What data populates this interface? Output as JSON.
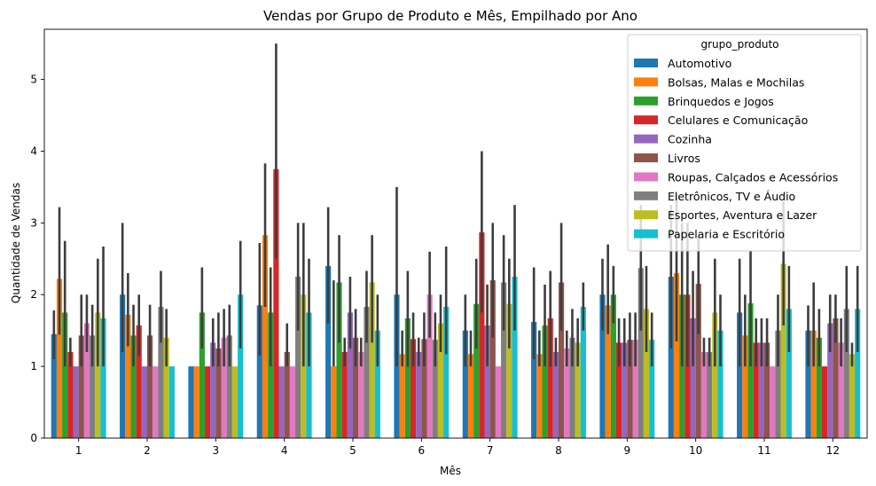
{
  "chart_data": {
    "type": "bar",
    "title": "Vendas por Grupo de Produto e Mês, Empilhado por Ano",
    "xlabel": "Mês",
    "ylabel": "Quantidade de Vendas",
    "categories": [
      "1",
      "2",
      "3",
      "4",
      "5",
      "6",
      "7",
      "8",
      "9",
      "10",
      "11",
      "12"
    ],
    "y_ticks": [
      "0",
      "1",
      "2",
      "3",
      "4",
      "5"
    ],
    "ylim": [
      0,
      5.7
    ],
    "grid": false,
    "legend_title": "grupo_produto",
    "legend_placement": "top-right",
    "series": [
      {
        "name": "Automotivo",
        "color": "#1f77b4",
        "values": [
          1.45,
          2.0,
          1.0,
          1.85,
          2.4,
          2.0,
          1.5,
          1.62,
          2.0,
          2.25,
          1.75,
          1.5
        ],
        "ci_low": [
          1.1,
          1.2,
          1.0,
          1.15,
          1.6,
          1.0,
          1.0,
          1.1,
          1.5,
          1.25,
          1.0,
          1.0
        ],
        "ci_high": [
          1.78,
          3.0,
          1.0,
          2.72,
          3.22,
          3.5,
          2.0,
          2.38,
          2.5,
          3.25,
          2.5,
          1.85
        ]
      },
      {
        "name": "Bolsas, Malas e Mochilas",
        "color": "#ff7f0e",
        "values": [
          2.22,
          1.72,
          1.0,
          2.83,
          1.0,
          1.17,
          1.17,
          1.17,
          1.85,
          2.3,
          1.43,
          1.5
        ],
        "ci_low": [
          1.44,
          1.28,
          1.0,
          1.83,
          1.0,
          1.0,
          1.0,
          1.0,
          1.45,
          1.35,
          1.0,
          1.0
        ],
        "ci_high": [
          3.22,
          2.3,
          1.0,
          3.83,
          2.2,
          1.5,
          1.5,
          1.5,
          2.7,
          3.4,
          2.0,
          2.17
        ]
      },
      {
        "name": "Brinquedos e Jogos",
        "color": "#2ca02c",
        "values": [
          1.75,
          1.43,
          1.75,
          1.75,
          2.17,
          1.67,
          1.87,
          1.57,
          2.0,
          2.0,
          1.88,
          1.4
        ],
        "ci_low": [
          1.0,
          1.0,
          1.25,
          1.0,
          1.33,
          1.0,
          1.25,
          1.0,
          1.6,
          1.0,
          1.0,
          1.0
        ],
        "ci_high": [
          2.75,
          1.86,
          2.38,
          2.38,
          2.83,
          2.33,
          2.5,
          2.14,
          2.4,
          3.0,
          2.62,
          1.8
        ]
      },
      {
        "name": "Celulares e Comunicação",
        "color": "#d62728",
        "values": [
          1.2,
          1.57,
          1.0,
          3.75,
          1.2,
          1.38,
          2.87,
          1.67,
          1.33,
          2.0,
          1.33,
          1.0
        ],
        "ci_low": [
          1.0,
          1.14,
          1.0,
          2.5,
          1.0,
          1.0,
          1.75,
          1.0,
          1.0,
          1.0,
          1.0,
          1.0
        ],
        "ci_high": [
          1.4,
          2.0,
          1.0,
          5.5,
          1.4,
          1.75,
          4.0,
          2.33,
          1.67,
          3.0,
          1.67,
          1.0
        ]
      },
      {
        "name": "Cozinha",
        "color": "#9467bd",
        "values": [
          1.0,
          1.0,
          1.33,
          1.0,
          1.75,
          1.2,
          1.57,
          1.2,
          1.33,
          1.67,
          1.33,
          1.6
        ],
        "ci_low": [
          1.0,
          1.0,
          1.0,
          1.0,
          1.25,
          1.0,
          1.0,
          1.0,
          1.0,
          1.0,
          1.0,
          1.2
        ],
        "ci_high": [
          1.0,
          1.0,
          1.67,
          1.0,
          2.25,
          1.4,
          2.14,
          1.4,
          1.67,
          2.33,
          1.67,
          2.0
        ]
      },
      {
        "name": "Livros",
        "color": "#8c564b",
        "values": [
          1.43,
          1.43,
          1.25,
          1.2,
          1.4,
          1.38,
          2.2,
          2.17,
          1.37,
          2.15,
          1.33,
          1.67
        ],
        "ci_low": [
          1.0,
          1.0,
          1.0,
          1.0,
          1.0,
          1.0,
          1.4,
          1.5,
          1.0,
          1.45,
          1.0,
          1.33
        ],
        "ci_high": [
          2.0,
          1.86,
          1.75,
          1.6,
          1.8,
          1.75,
          3.0,
          3.0,
          1.75,
          2.85,
          1.67,
          2.0
        ]
      },
      {
        "name": "Roupas, Calçados e Acessórios",
        "color": "#e377c2",
        "values": [
          1.6,
          1.0,
          1.4,
          1.0,
          1.2,
          2.0,
          1.0,
          1.25,
          1.37,
          1.2,
          1.0,
          1.33
        ],
        "ci_low": [
          1.2,
          1.0,
          1.0,
          1.0,
          1.0,
          1.4,
          1.0,
          1.0,
          1.0,
          1.0,
          1.0,
          1.0
        ],
        "ci_high": [
          2.0,
          1.0,
          1.8,
          1.0,
          1.4,
          2.6,
          1.0,
          1.5,
          1.75,
          1.4,
          1.0,
          1.67
        ]
      },
      {
        "name": "Eletrônicos, TV e Áudio",
        "color": "#7f7f7f",
        "values": [
          1.43,
          1.83,
          1.43,
          2.25,
          1.83,
          1.37,
          2.17,
          1.4,
          2.37,
          1.2,
          1.5,
          1.8
        ],
        "ci_low": [
          1.0,
          1.33,
          1.0,
          1.5,
          1.33,
          1.0,
          1.5,
          1.0,
          1.5,
          1.0,
          1.0,
          1.2
        ],
        "ci_high": [
          1.86,
          2.33,
          1.86,
          3.0,
          2.33,
          1.75,
          2.83,
          1.8,
          3.25,
          1.4,
          2.0,
          2.4
        ]
      },
      {
        "name": "Esportes, Aventura e Lazer",
        "color": "#bcbd22",
        "values": [
          1.75,
          1.4,
          1.0,
          2.0,
          2.17,
          1.6,
          1.87,
          1.33,
          1.8,
          1.75,
          2.43,
          1.17
        ],
        "ci_low": [
          1.0,
          1.0,
          1.0,
          1.0,
          1.33,
          1.2,
          1.25,
          1.0,
          1.2,
          1.0,
          1.57,
          1.0
        ],
        "ci_high": [
          2.5,
          1.8,
          1.0,
          3.0,
          2.83,
          2.0,
          2.5,
          1.67,
          2.4,
          2.5,
          3.3,
          1.33
        ]
      },
      {
        "name": "Papelaria e Escritório",
        "color": "#17becf",
        "values": [
          1.67,
          1.0,
          2.0,
          1.75,
          1.5,
          1.83,
          2.25,
          1.83,
          1.37,
          1.5,
          1.8,
          1.8
        ],
        "ci_low": [
          1.0,
          1.0,
          1.25,
          1.0,
          1.0,
          1.17,
          1.5,
          1.5,
          1.0,
          1.0,
          1.2,
          1.2
        ],
        "ci_high": [
          2.67,
          1.0,
          2.75,
          2.5,
          2.0,
          2.67,
          3.25,
          2.17,
          1.75,
          2.0,
          2.4,
          2.4
        ]
      }
    ]
  }
}
